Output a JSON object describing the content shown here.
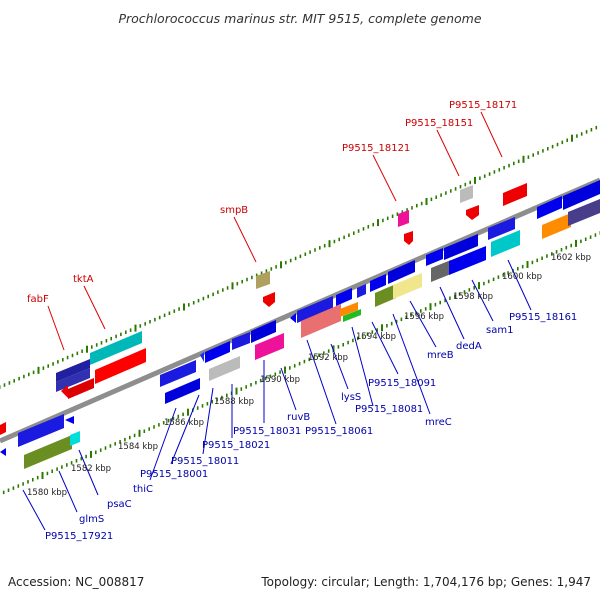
{
  "title": "Prochlorococcus marinus str. MIT 9515, complete genome",
  "footer": {
    "accession": "Accession: NC_008817",
    "summary": "Topology: circular; Length: 1,704,176 bp; Genes: 1,947"
  },
  "colors": {
    "backbone": "#8e8e8e",
    "tick": "#2a7a00",
    "label_forward": "#cc0000",
    "label_reverse": "#0000aa",
    "leader_forward": "#dd0000",
    "leader_reverse": "#0000cc"
  },
  "scale_labels": [
    "1580 kbp",
    "1582 kbp",
    "1584 kbp",
    "1586 kbp",
    "1588 kbp",
    "1590 kbp",
    "1592 kbp",
    "1594 kbp",
    "1596 kbp",
    "1598 kbp",
    "1600 kbp",
    "1602 kbp"
  ],
  "forward_labels": [
    "fabF",
    "tktA",
    "smpB",
    "P9515_18121",
    "P9515_18151",
    "P9515_18171"
  ],
  "reverse_labels": [
    "P9515_17921",
    "glmS",
    "psaC",
    "thiC",
    "P9515_18001",
    "P9515_18011",
    "P9515_18021",
    "P9515_18031",
    "ruvB",
    "P9515_18061",
    "lysS",
    "P9515_18081",
    "P9515_18091",
    "mreC",
    "mreB",
    "dedA",
    "sam1",
    "P9515_18161"
  ]
}
